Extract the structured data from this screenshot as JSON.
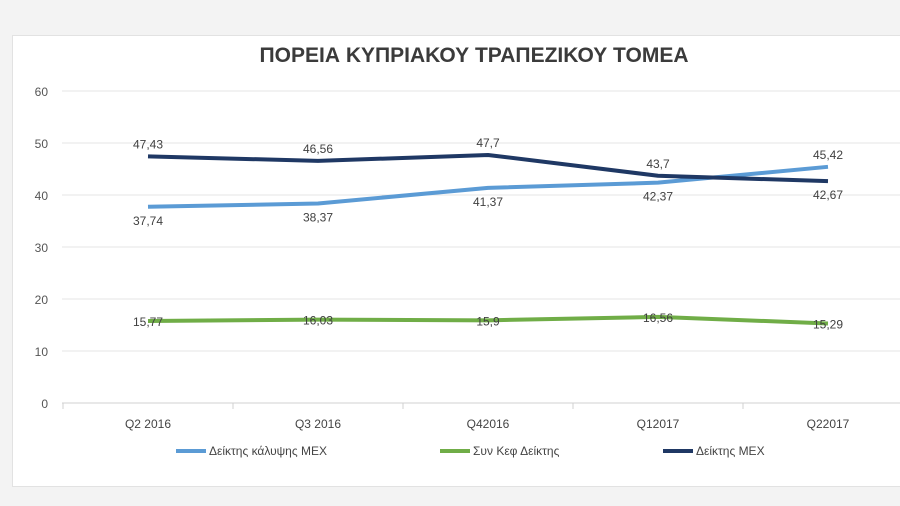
{
  "chart_data": {
    "type": "line",
    "title": "ΠΟΡΕΙΑ ΚΥΠΡΙΑΚΟΥ ΤΡΑΠΕΖΙΚΟΥ ΤΟΜΕΑ",
    "categories": [
      "Q2 2016",
      "Q3 2016",
      "Q42016",
      "Q12017",
      "Q22017"
    ],
    "ylim": [
      0,
      60
    ],
    "yticks": [
      0,
      10,
      20,
      30,
      40,
      50,
      60
    ],
    "grid": true,
    "legend": "bottom",
    "series": [
      {
        "name": "Δείκτης κάλυψης ΜΕΧ",
        "color": "#5b9bd5",
        "values": [
          37.74,
          38.37,
          41.37,
          42.37,
          45.42
        ],
        "labels": [
          "37,74",
          "38,37",
          "41,37",
          "42,37",
          "45,42"
        ]
      },
      {
        "name": "Συν Κεφ Δείκτης",
        "color": "#70ad47",
        "values": [
          15.77,
          16.03,
          15.9,
          16.56,
          15.29
        ],
        "labels": [
          "15,77",
          "16,03",
          "15,9",
          "16,56",
          "15,29"
        ]
      },
      {
        "name": "Δείκτης ΜΕΧ",
        "color": "#1f3864",
        "values": [
          47.43,
          46.56,
          47.7,
          43.7,
          42.67
        ],
        "labels": [
          "47,43",
          "46,56",
          "47,7",
          "43,7",
          "42,67"
        ]
      }
    ]
  }
}
